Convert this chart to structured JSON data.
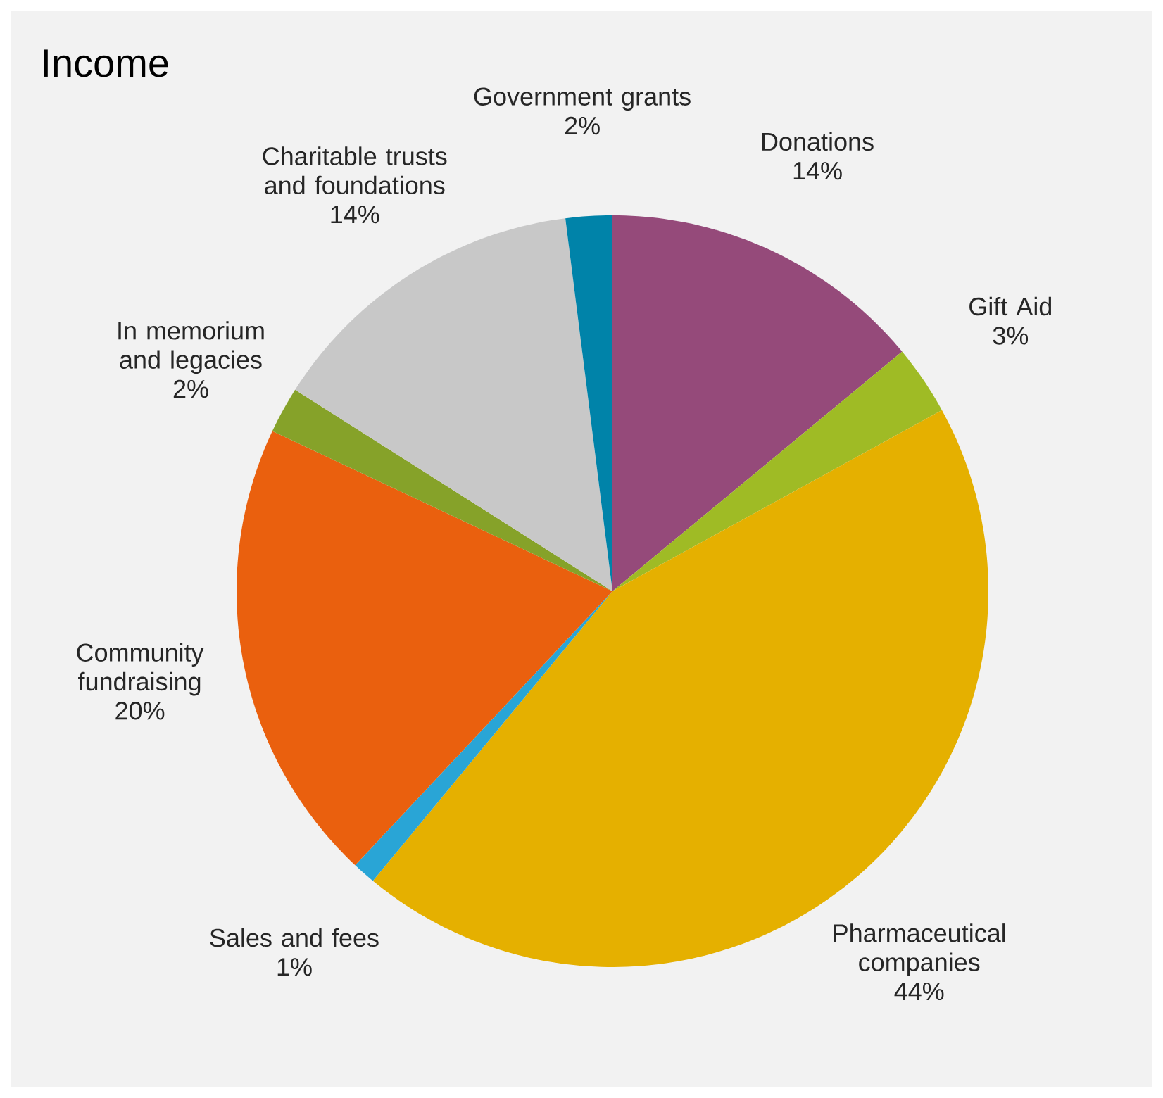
{
  "chart_data": {
    "type": "pie",
    "title": "Income",
    "categories": [
      "Donations",
      "Gift Aid",
      "Pharmaceutical companies",
      "Sales and fees",
      "Community fundraising",
      "In memorium and legacies",
      "Charitable trusts and foundations",
      "Government grants"
    ],
    "values": [
      14,
      3,
      44,
      1,
      20,
      2,
      14,
      2
    ],
    "value_labels": [
      "14%",
      "3%",
      "44%",
      "1%",
      "20%",
      "2%",
      "14%",
      "2%"
    ],
    "colors": [
      "#954a7a",
      "#9fbb25",
      "#e5b000",
      "#29a5d6",
      "#ea600e",
      "#86a229",
      "#c8c8c8",
      "#0083a9"
    ]
  }
}
